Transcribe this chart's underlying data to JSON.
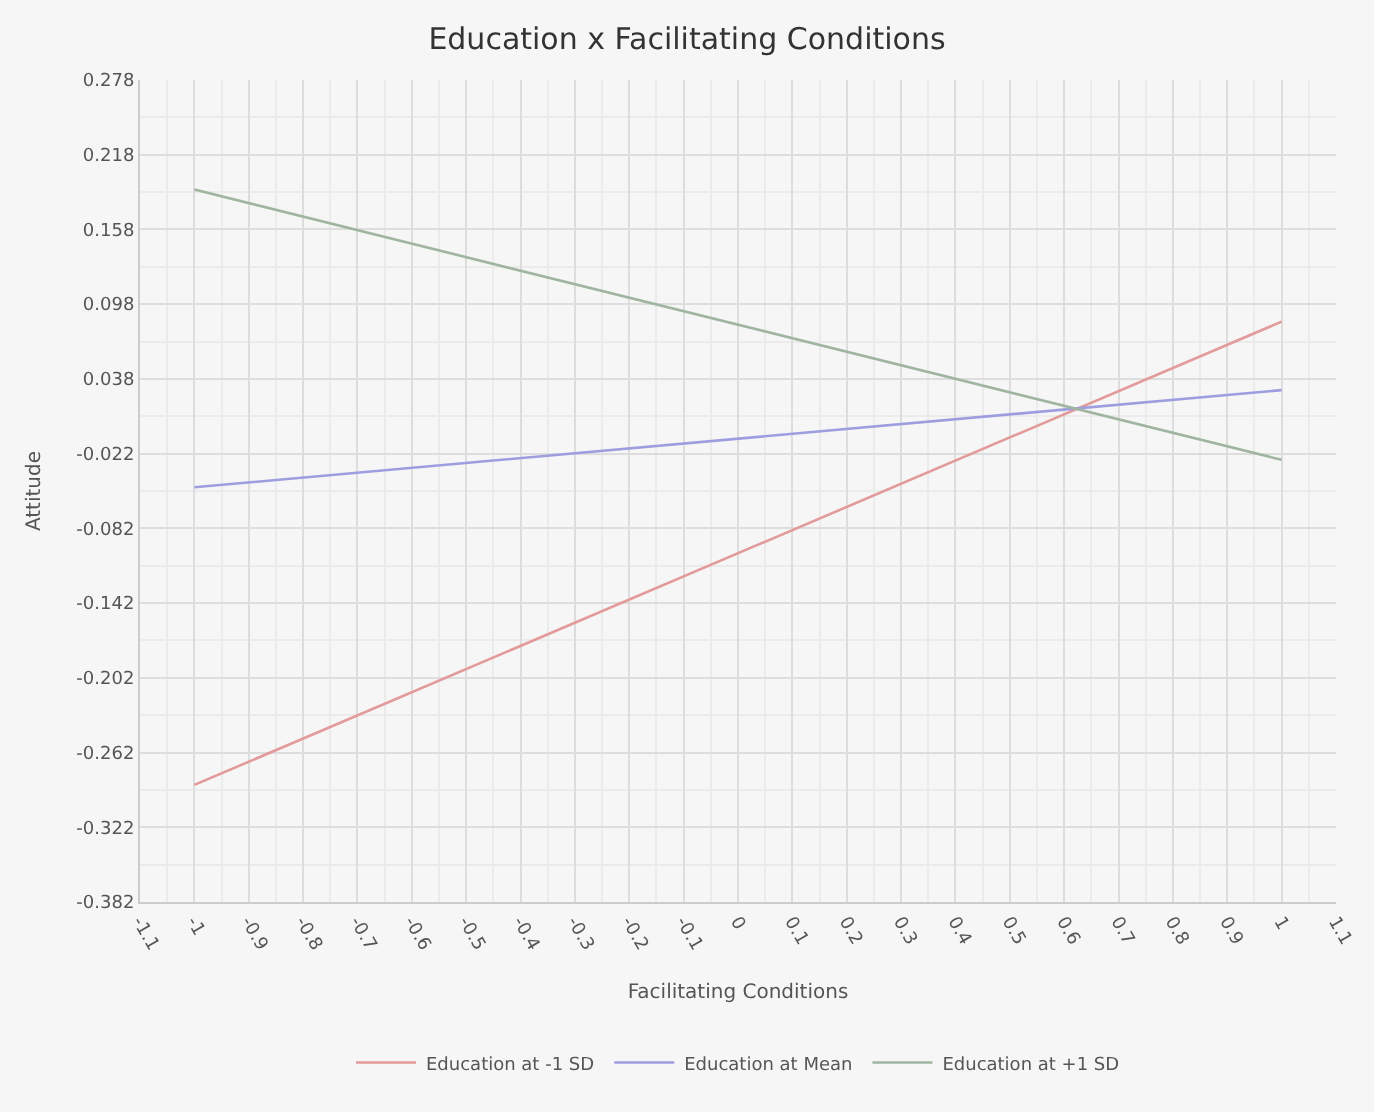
{
  "chart_data": {
    "type": "line",
    "title": "Education x Facilitating Conditions",
    "xlabel": "Facilitating Conditions",
    "ylabel": "Attitude",
    "x": [
      -1,
      1
    ],
    "series": [
      {
        "name": "Education at -1 SD",
        "color": "#e39a9a",
        "values": [
          -0.288,
          0.084
        ]
      },
      {
        "name": "Education at Mean",
        "color": "#9d9de0",
        "values": [
          -0.049,
          0.029
        ]
      },
      {
        "name": "Education at +1 SD",
        "color": "#9fb59f",
        "values": [
          0.19,
          -0.027
        ]
      }
    ],
    "xlim": [
      -1.1,
      1.1
    ],
    "xticks": [
      -1.1,
      -1,
      -0.9,
      -0.8,
      -0.7,
      -0.6,
      -0.5,
      -0.4,
      -0.3,
      -0.2,
      -0.1,
      0,
      0.1,
      0.2,
      0.3,
      0.4,
      0.5,
      0.6,
      0.7,
      0.8,
      0.9,
      1,
      1.1
    ],
    "ylim": [
      -0.382,
      0.278
    ],
    "yticks": [
      -0.382,
      -0.322,
      -0.262,
      -0.202,
      -0.142,
      -0.082,
      -0.022,
      0.038,
      0.098,
      0.158,
      0.218,
      0.278
    ],
    "grid": true,
    "legend": "bottom",
    "marker": "none",
    "line_style": "solid"
  }
}
